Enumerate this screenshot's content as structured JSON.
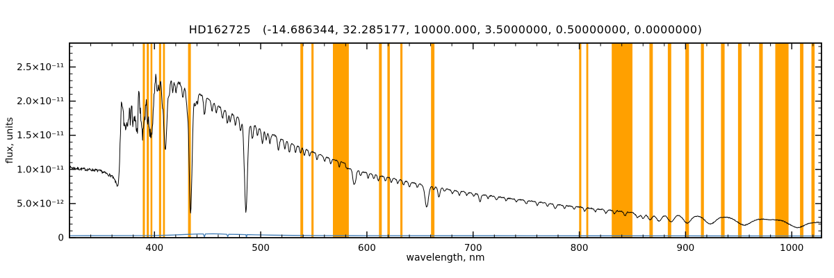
{
  "chart_data": {
    "type": "line",
    "title": "HD162725   (-14.686344, 32.285177, 10000.000, 3.5000000, 0.50000000, 0.0000000)",
    "xlabel": "wavelength, nm",
    "ylabel": "flux, units",
    "xlim": [
      320,
      1028
    ],
    "ylim": [
      0,
      2.85e-11
    ],
    "ylim_1e12": [
      0,
      28.5
    ],
    "flux_unit": "1e-12 flux units",
    "grid": false,
    "legend": false,
    "x_major_ticks": [
      400,
      500,
      600,
      700,
      800,
      900,
      1000
    ],
    "x_minor_step_nm": 20,
    "y_minor_step": 1,
    "y_ticks": [
      {
        "v": 0,
        "label": "0"
      },
      {
        "v": 5,
        "label": "5.0×10⁻¹²"
      },
      {
        "v": 10,
        "label": "1.0×10⁻¹¹"
      },
      {
        "v": 15,
        "label": "1.5×10⁻¹¹"
      },
      {
        "v": 20,
        "label": "2.0×10⁻¹¹"
      },
      {
        "v": 25,
        "label": "2.5×10⁻¹¹"
      }
    ],
    "colors": {
      "band": "#FFA000",
      "spectrum": "#000000",
      "secondary": "#3d7ab5",
      "axis": "#000000"
    },
    "bands_nm": [
      [
        389,
        391
      ],
      [
        392.7,
        394.7
      ],
      [
        396.3,
        398
      ],
      [
        404.3,
        406.3
      ],
      [
        408,
        409.8
      ],
      [
        431.6,
        434.2
      ],
      [
        537.4,
        540
      ],
      [
        547.8,
        549.8
      ],
      [
        568,
        583
      ],
      [
        611.4,
        614
      ],
      [
        619.3,
        621.6
      ],
      [
        631.5,
        633.5
      ],
      [
        660.4,
        663.6
      ],
      [
        799.8,
        801.8
      ],
      [
        806.6,
        808.4
      ],
      [
        830.5,
        850
      ],
      [
        866,
        869.2
      ],
      [
        883.3,
        886.5
      ],
      [
        899.8,
        903.2
      ],
      [
        914.5,
        917.3
      ],
      [
        933.4,
        936.8
      ],
      [
        949.4,
        952.8
      ],
      [
        969.3,
        972.7
      ],
      [
        984.5,
        997
      ],
      [
        1007.8,
        1011
      ],
      [
        1018.5,
        1021.5
      ]
    ],
    "spectrum": {
      "seed": 7,
      "sample_step_nm": 0.4,
      "continuum_1e12": [
        [
          320,
          10.3
        ],
        [
          328,
          10.1
        ],
        [
          336,
          10.0
        ],
        [
          344,
          9.9
        ],
        [
          350,
          9.7
        ],
        [
          356,
          9.3
        ],
        [
          360,
          9.0
        ],
        [
          363,
          8.3
        ],
        [
          365,
          7.6
        ],
        [
          366.5,
          8.0
        ],
        [
          367.5,
          12.0
        ],
        [
          368.5,
          18.0
        ],
        [
          369.5,
          22.0
        ],
        [
          371,
          23.5
        ],
        [
          374,
          24.2
        ],
        [
          378,
          24.6
        ],
        [
          382,
          24.8
        ],
        [
          386,
          25.0
        ],
        [
          390,
          25.1
        ],
        [
          394,
          25.3
        ],
        [
          397,
          25.0
        ],
        [
          400,
          24.5
        ],
        [
          404,
          24.1
        ],
        [
          408,
          23.8
        ],
        [
          412,
          23.5
        ],
        [
          416,
          23.2
        ],
        [
          420,
          22.9
        ],
        [
          425,
          22.5
        ],
        [
          430,
          22.1
        ],
        [
          435,
          21.7
        ],
        [
          440,
          21.3
        ],
        [
          445,
          20.8
        ],
        [
          450,
          20.3
        ],
        [
          455,
          19.8
        ],
        [
          460,
          19.3
        ],
        [
          465,
          18.8
        ],
        [
          470,
          18.4
        ],
        [
          475,
          17.9
        ],
        [
          480,
          17.5
        ],
        [
          485,
          17.1
        ],
        [
          490,
          16.7
        ],
        [
          495,
          16.3
        ],
        [
          500,
          15.9
        ],
        [
          505,
          15.5
        ],
        [
          510,
          15.1
        ],
        [
          515,
          14.8
        ],
        [
          520,
          14.4
        ],
        [
          525,
          14.1
        ],
        [
          530,
          13.7
        ],
        [
          535,
          13.4
        ],
        [
          540,
          13.1
        ],
        [
          545,
          12.8
        ],
        [
          550,
          12.5
        ],
        [
          555,
          12.2
        ],
        [
          560,
          11.9
        ],
        [
          565,
          11.6
        ],
        [
          570,
          11.35
        ],
        [
          575,
          11.15
        ],
        [
          578,
          11.0
        ],
        [
          579.5,
          10.95
        ],
        [
          580.5,
          10.15
        ],
        [
          584,
          10.05
        ],
        [
          588,
          9.95
        ],
        [
          592,
          9.8
        ],
        [
          596,
          9.65
        ],
        [
          600,
          9.5
        ],
        [
          605,
          9.3
        ],
        [
          610,
          9.15
        ],
        [
          615,
          9.0
        ],
        [
          620,
          8.85
        ],
        [
          625,
          8.65
        ],
        [
          630,
          8.5
        ],
        [
          635,
          8.3
        ],
        [
          640,
          8.15
        ],
        [
          645,
          8.0
        ],
        [
          650,
          7.85
        ],
        [
          655,
          7.7
        ],
        [
          660,
          7.55
        ],
        [
          665,
          7.4
        ],
        [
          670,
          7.25
        ],
        [
          675,
          7.1
        ],
        [
          680,
          7.0
        ],
        [
          685,
          6.85
        ],
        [
          690,
          6.75
        ],
        [
          695,
          6.6
        ],
        [
          700,
          6.5
        ],
        [
          710,
          6.25
        ],
        [
          720,
          6.05
        ],
        [
          730,
          5.85
        ],
        [
          740,
          5.65
        ],
        [
          750,
          5.45
        ],
        [
          760,
          5.25
        ],
        [
          770,
          5.05
        ],
        [
          780,
          4.85
        ],
        [
          790,
          4.65
        ],
        [
          800,
          4.5
        ],
        [
          810,
          4.3
        ],
        [
          820,
          4.15
        ],
        [
          830,
          4.0
        ],
        [
          840,
          3.85
        ],
        [
          846,
          3.75
        ],
        [
          850,
          3.7
        ],
        [
          852,
          3.55
        ],
        [
          853,
          3.75
        ],
        [
          856,
          3.7
        ],
        [
          860,
          3.65
        ],
        [
          870,
          3.55
        ],
        [
          880,
          3.45
        ],
        [
          890,
          3.4
        ],
        [
          900,
          3.3
        ],
        [
          910,
          3.2
        ],
        [
          920,
          3.15
        ],
        [
          930,
          3.05
        ],
        [
          940,
          3.0
        ],
        [
          950,
          2.9
        ],
        [
          960,
          2.8
        ],
        [
          970,
          2.75
        ],
        [
          980,
          2.65
        ],
        [
          990,
          2.6
        ],
        [
          1000,
          2.5
        ],
        [
          1010,
          2.4
        ],
        [
          1020,
          2.3
        ],
        [
          1028,
          2.25
        ]
      ],
      "noise_regions": [
        [
          320,
          366,
          0.22
        ],
        [
          366,
          401,
          1.2
        ],
        [
          401,
          435,
          0.22
        ],
        [
          435,
          520,
          0.16
        ],
        [
          520,
          860,
          0.08
        ],
        [
          860,
          1028.5,
          0.06
        ]
      ],
      "absorption_lines": [
        [
          370.5,
          4,
          0.8
        ],
        [
          371.9,
          5,
          0.8
        ],
        [
          373.4,
          5.5,
          0.9
        ],
        [
          375.0,
          5,
          0.9
        ],
        [
          377.1,
          6.5,
          0.9
        ],
        [
          379.8,
          8,
          1.0
        ],
        [
          381.5,
          4,
          0.7
        ],
        [
          383.5,
          9.5,
          1.1
        ],
        [
          386.5,
          5,
          0.8
        ],
        [
          388.9,
          10.5,
          1.2
        ],
        [
          391.2,
          5,
          0.7
        ],
        [
          393.4,
          8,
          1.0
        ],
        [
          395.1,
          4.5,
          0.7
        ],
        [
          397.0,
          10.5,
          1.2
        ],
        [
          399.3,
          4,
          0.7
        ],
        [
          402.6,
          3,
          0.7
        ],
        [
          404.6,
          2.5,
          0.7
        ],
        [
          407.2,
          2.8,
          0.7
        ],
        [
          410.2,
          10.8,
          1.5
        ],
        [
          413.9,
          2.2,
          0.7
        ],
        [
          417.2,
          1.8,
          0.7
        ],
        [
          420.3,
          1.5,
          0.7
        ],
        [
          426.7,
          1.8,
          0.8
        ],
        [
          430.5,
          2.2,
          0.9
        ],
        [
          434.0,
          18.0,
          1.4
        ],
        [
          438.4,
          2.0,
          0.8
        ],
        [
          440.5,
          1.5,
          0.7
        ],
        [
          447.1,
          2.6,
          0.8
        ],
        [
          454.2,
          1.3,
          0.7
        ],
        [
          458.2,
          1.2,
          0.7
        ],
        [
          464.0,
          1.4,
          0.8
        ],
        [
          468.6,
          1.7,
          0.8
        ],
        [
          471.3,
          1.2,
          0.7
        ],
        [
          476.2,
          1.3,
          0.7
        ],
        [
          481.0,
          1.8,
          0.8
        ],
        [
          486.1,
          13.2,
          1.4
        ],
        [
          492.2,
          2.0,
          0.8
        ],
        [
          497.0,
          1.2,
          0.7
        ],
        [
          501.6,
          1.9,
          0.8
        ],
        [
          505.0,
          1.1,
          0.7
        ],
        [
          508.7,
          1.3,
          0.7
        ],
        [
          516.7,
          1.8,
          0.9
        ],
        [
          522.7,
          1.2,
          0.7
        ],
        [
          527.0,
          1.5,
          0.8
        ],
        [
          532.8,
          1.1,
          0.7
        ],
        [
          537.5,
          0.9,
          0.7
        ],
        [
          541.1,
          1.0,
          0.7
        ],
        [
          546.0,
          0.8,
          0.7
        ],
        [
          553.0,
          0.9,
          0.7
        ],
        [
          560.1,
          0.7,
          0.7
        ],
        [
          566.0,
          0.7,
          0.7
        ],
        [
          574.0,
          0.8,
          0.7
        ],
        [
          587.6,
          1.9,
          0.9
        ],
        [
          589.3,
          1.4,
          0.8
        ],
        [
          594.0,
          0.7,
          0.7
        ],
        [
          601.2,
          0.7,
          0.7
        ],
        [
          606.5,
          0.6,
          0.7
        ],
        [
          610.8,
          0.8,
          0.8
        ],
        [
          617.5,
          0.6,
          0.7
        ],
        [
          623.0,
          0.7,
          0.7
        ],
        [
          629.0,
          0.6,
          0.7
        ],
        [
          634.5,
          0.6,
          0.7
        ],
        [
          640.0,
          0.7,
          0.8
        ],
        [
          647.5,
          0.6,
          0.7
        ],
        [
          656.3,
          3.2,
          1.6
        ],
        [
          663.0,
          0.5,
          0.7
        ],
        [
          667.8,
          1.4,
          0.9
        ],
        [
          673.0,
          0.4,
          0.7
        ],
        [
          680.5,
          0.5,
          0.8
        ],
        [
          687.0,
          0.6,
          0.8
        ],
        [
          694.0,
          0.4,
          0.7
        ],
        [
          700.5,
          0.4,
          0.8
        ],
        [
          706.5,
          1.1,
          0.9
        ],
        [
          714.0,
          0.4,
          0.8
        ],
        [
          722.0,
          0.5,
          0.9
        ],
        [
          731.0,
          0.4,
          0.8
        ],
        [
          740.5,
          0.4,
          0.8
        ],
        [
          750.0,
          0.5,
          0.9
        ],
        [
          760.5,
          0.5,
          0.9
        ],
        [
          770.0,
          0.4,
          0.8
        ],
        [
          777.4,
          0.7,
          1.0
        ],
        [
          786.0,
          0.4,
          0.8
        ],
        [
          795.0,
          0.4,
          0.8
        ],
        [
          805.0,
          0.5,
          0.9
        ],
        [
          815.0,
          0.4,
          0.8
        ],
        [
          825.0,
          0.5,
          0.9
        ],
        [
          833.0,
          0.5,
          0.9
        ],
        [
          843.0,
          0.6,
          1.0
        ],
        [
          854.9,
          0.75,
          1.6
        ],
        [
          860.0,
          0.8,
          1.6
        ],
        [
          866.5,
          0.95,
          2.0
        ],
        [
          875.0,
          1.05,
          2.6
        ],
        [
          886.3,
          1.1,
          2.8
        ],
        [
          901.5,
          1.15,
          3.4
        ],
        [
          923.2,
          1.1,
          4.6
        ],
        [
          954.9,
          1.0,
          6.0
        ],
        [
          1004.9,
          0.95,
          7.0
        ]
      ]
    },
    "secondary_line_1e12": [
      [
        320,
        0.3
      ],
      [
        400,
        0.32
      ],
      [
        415,
        0.38
      ],
      [
        430,
        0.48
      ],
      [
        442,
        0.55
      ],
      [
        446,
        0.55
      ],
      [
        447,
        0.12
      ],
      [
        448,
        0.55
      ],
      [
        455,
        0.57
      ],
      [
        462,
        0.55
      ],
      [
        468,
        0.5
      ],
      [
        469,
        0.18
      ],
      [
        470,
        0.5
      ],
      [
        478,
        0.48
      ],
      [
        486,
        0.45
      ],
      [
        486.6,
        0.08
      ],
      [
        487.2,
        0.45
      ],
      [
        495,
        0.42
      ],
      [
        510,
        0.38
      ],
      [
        530,
        0.34
      ],
      [
        560,
        0.31
      ],
      [
        600,
        0.3
      ],
      [
        660,
        0.29
      ],
      [
        720,
        0.28
      ],
      [
        800,
        0.27
      ],
      [
        900,
        0.26
      ],
      [
        1028,
        0.25
      ]
    ]
  }
}
